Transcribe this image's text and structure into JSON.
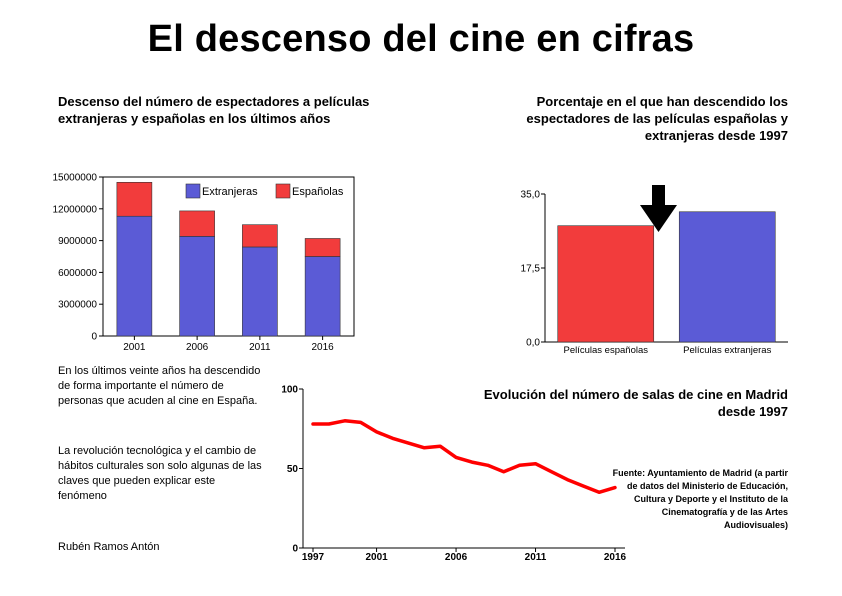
{
  "title": "El descenso del cine en cifras",
  "colors": {
    "extranjeras": "#5b5bd6",
    "espanolas": "#f23c3c",
    "line": "#ff0000"
  },
  "text": {
    "para1": "En los últimos veinte años ha descendido de forma importante el número de personas que acuden al cine en España.",
    "para2": "La revolución tecnológica y el cambio de hábitos culturales son solo algunas de las claves que pueden explicar este fenómeno",
    "author": "Rubén Ramos Antón",
    "source": "Fuente: Ayuntamiento de Madrid (a partir de datos del Ministerio de Educación, Cultura y Deporte y el Instituto de la Cinematografía y de las Artes Audiovisuales)"
  },
  "chart_data": [
    {
      "type": "bar",
      "stacked": true,
      "title": "Descenso del número de espectadores a películas extranjeras y españolas en los últimos años",
      "categories": [
        "2001",
        "2006",
        "2011",
        "2016"
      ],
      "series": [
        {
          "name": "Extranjeras",
          "values": [
            11300000,
            9400000,
            8400000,
            7500000
          ]
        },
        {
          "name": "Españolas",
          "values": [
            3200000,
            2400000,
            2100000,
            1700000
          ]
        }
      ],
      "ylim": [
        0,
        15000000
      ],
      "yticks": [
        "15000000",
        "12000000",
        "9000000",
        "6000000",
        "3000000",
        "0"
      ],
      "legend": "top-right"
    },
    {
      "type": "bar",
      "title": "Porcentaje en el que han descendido los espectadores de las películas españolas y extranjeras desde 1997",
      "categories": [
        "Películas españolas",
        "Películas extranjeras"
      ],
      "values": [
        27.5,
        30.8
      ],
      "ylim": [
        0,
        35
      ],
      "yticks": [
        "35,0",
        "17,5",
        "0,0"
      ],
      "annotation": "down-arrow"
    },
    {
      "type": "line",
      "title": "Evolución del número de salas de cine en Madrid desde 1997",
      "x": [
        1997,
        1998,
        1999,
        2000,
        2001,
        2002,
        2003,
        2004,
        2005,
        2006,
        2007,
        2008,
        2009,
        2010,
        2011,
        2012,
        2013,
        2014,
        2015,
        2016
      ],
      "y": [
        78,
        78,
        80,
        79,
        73,
        69,
        66,
        63,
        64,
        57,
        54,
        52,
        48,
        52,
        53,
        48,
        43,
        39,
        35,
        38
      ],
      "ylim": [
        0,
        100
      ],
      "yticks": [
        "100",
        "50",
        "0"
      ],
      "xticks": [
        "1997",
        "2001",
        "2006",
        "2011",
        "2016"
      ]
    }
  ]
}
